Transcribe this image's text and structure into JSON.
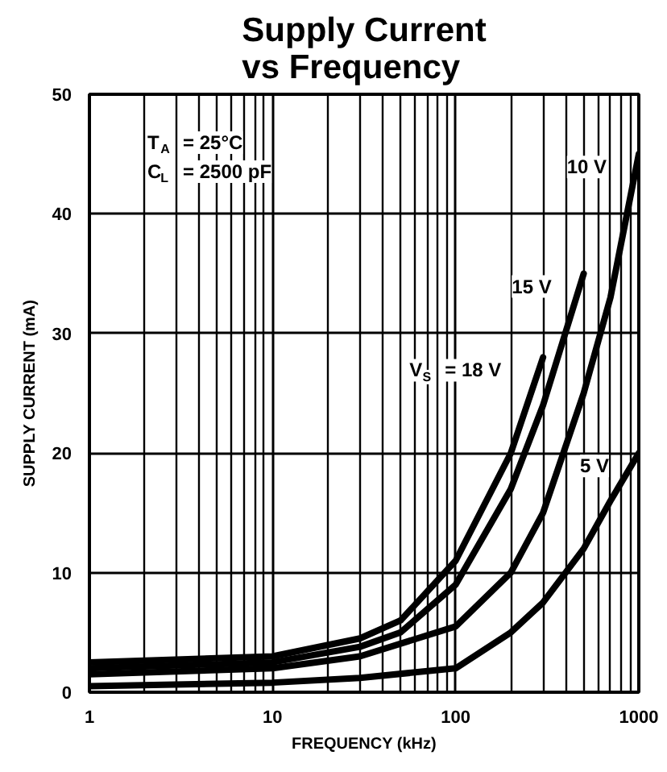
{
  "chart_data": {
    "type": "line",
    "title": "Supply Current\nvs Frequency",
    "xlabel": "FREQUENCY (kHz)",
    "ylabel": "SUPPLY CURRENT (mA)",
    "annotations": [
      "T$_{A}$ = 25°C",
      "C$_{L}$ = 2500 pF"
    ],
    "log": "x",
    "xlim": [
      1,
      1000
    ],
    "xticks": [
      1,
      10,
      100,
      1000
    ],
    "ylim": [
      0,
      50
    ],
    "yticks": [
      0,
      10,
      20,
      30,
      40,
      50
    ],
    "grid": true,
    "series": [
      {
        "name": "10 V",
        "color": "#000000",
        "x": [
          1,
          10,
          30,
          100,
          200,
          300,
          500,
          700,
          1000
        ],
        "values": [
          1.5,
          2,
          3,
          5.5,
          10,
          15,
          25,
          33,
          45
        ]
      },
      {
        "name": "15 V",
        "color": "#000000",
        "x": [
          1,
          10,
          30,
          50,
          100,
          200,
          300,
          500
        ],
        "values": [
          2,
          2.5,
          3.8,
          5,
          9,
          17,
          24,
          35
        ]
      },
      {
        "name": "V$_{S}$ = 18 V",
        "color": "#000000",
        "x": [
          1,
          10,
          30,
          50,
          100,
          200,
          300
        ],
        "values": [
          2.5,
          3,
          4.5,
          6,
          11,
          20,
          28
        ]
      },
      {
        "name": "5 V",
        "color": "#000000",
        "x": [
          1,
          10,
          30,
          100,
          200,
          300,
          500,
          700,
          1000
        ],
        "values": [
          0.5,
          0.8,
          1.2,
          2,
          5,
          7.5,
          12,
          16,
          20
        ]
      }
    ]
  }
}
